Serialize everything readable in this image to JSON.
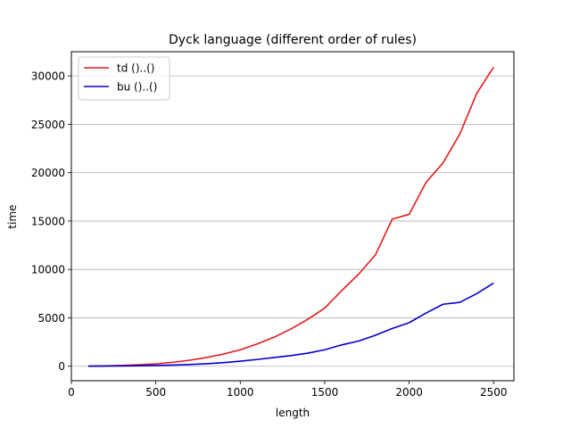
{
  "chart_data": {
    "type": "line",
    "title": "Dyck language (different order of rules)",
    "xlabel": "length",
    "ylabel": "time",
    "xlim": [
      0,
      2620
    ],
    "ylim": [
      -1500,
      32500
    ],
    "xticks": [
      0,
      500,
      1000,
      1500,
      2000,
      2500
    ],
    "yticks": [
      0,
      5000,
      10000,
      15000,
      20000,
      25000,
      30000
    ],
    "grid": "y",
    "legend_position": "top-left",
    "x": [
      100,
      200,
      300,
      400,
      500,
      600,
      700,
      800,
      900,
      1000,
      1100,
      1200,
      1300,
      1400,
      1500,
      1600,
      1700,
      1800,
      1900,
      2000,
      2100,
      2200,
      2300,
      2400,
      2500
    ],
    "series": [
      {
        "name": "td ()..()",
        "color": "#e31a1c",
        "values": [
          10,
          40,
          80,
          150,
          250,
          400,
          620,
          900,
          1250,
          1700,
          2300,
          3000,
          3850,
          4850,
          6000,
          7800,
          9500,
          11500,
          15200,
          15700,
          19000,
          21000,
          24000,
          28200,
          30900
        ]
      },
      {
        "name": "bu ()..()",
        "color": "#0000cc",
        "values": [
          5,
          15,
          30,
          50,
          80,
          120,
          180,
          260,
          370,
          520,
          700,
          900,
          1100,
          1350,
          1700,
          2200,
          2600,
          3200,
          3900,
          4500,
          5500,
          6400,
          6600,
          7500,
          8600
        ]
      }
    ]
  }
}
